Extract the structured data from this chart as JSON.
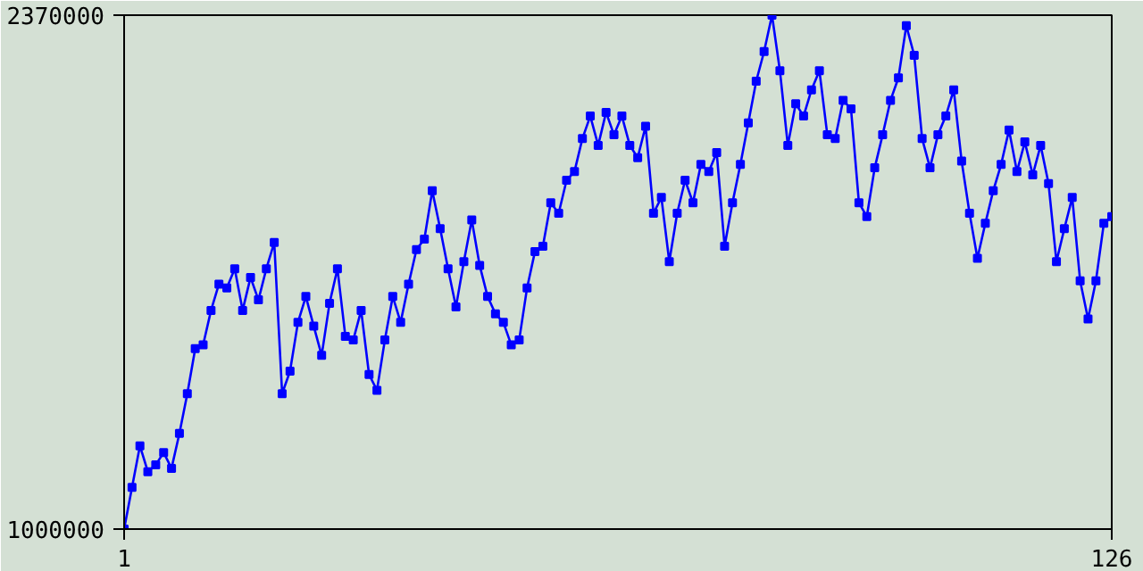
{
  "chart_data": {
    "type": "line",
    "x": [
      1,
      2,
      3,
      4,
      5,
      6,
      7,
      8,
      9,
      10,
      11,
      12,
      13,
      14,
      15,
      16,
      17,
      18,
      19,
      20,
      21,
      22,
      23,
      24,
      25,
      26,
      27,
      28,
      29,
      30,
      31,
      32,
      33,
      34,
      35,
      36,
      37,
      38,
      39,
      40,
      41,
      42,
      43,
      44,
      45,
      46,
      47,
      48,
      49,
      50,
      51,
      52,
      53,
      54,
      55,
      56,
      57,
      58,
      59,
      60,
      61,
      62,
      63,
      64,
      65,
      66,
      67,
      68,
      69,
      70,
      71,
      72,
      73,
      74,
      75,
      76,
      77,
      78,
      79,
      80,
      81,
      82,
      83,
      84,
      85,
      86,
      87,
      88,
      89,
      90,
      91,
      92,
      93,
      94,
      95,
      96,
      97,
      98,
      99,
      100,
      101,
      102,
      103,
      104,
      105,
      106,
      107,
      108,
      109,
      110,
      111,
      112,
      113,
      114,
      115,
      116,
      117,
      118,
      119,
      120,
      121,
      122,
      123,
      124,
      125,
      126
    ],
    "series": [
      {
        "color": "#0000ff",
        "values": [
          1000000,
          1111000,
          1222000,
          1153000,
          1171000,
          1204000,
          1162000,
          1255000,
          1361000,
          1481000,
          1491000,
          1583000,
          1653000,
          1643000,
          1694000,
          1583000,
          1671000,
          1611000,
          1694000,
          1764000,
          1361000,
          1421000,
          1551000,
          1620000,
          1541000,
          1463000,
          1602000,
          1694000,
          1514000,
          1504000,
          1583000,
          1412000,
          1370000,
          1504000,
          1620000,
          1551000,
          1653000,
          1745000,
          1773000,
          1902000,
          1801000,
          1694000,
          1592000,
          1713000,
          1824000,
          1703000,
          1620000,
          1574000,
          1551000,
          1491000,
          1504000,
          1643000,
          1740000,
          1754000,
          1870000,
          1842000,
          1930000,
          1953000,
          2041000,
          2101000,
          2023000,
          2111000,
          2051000,
          2101000,
          2023000,
          1990000,
          2074000,
          1842000,
          1884000,
          1713000,
          1842000,
          1930000,
          1870000,
          1972000,
          1953000,
          2004000,
          1754000,
          1870000,
          1972000,
          2083000,
          2194000,
          2273000,
          2370000,
          2222000,
          2023000,
          2134000,
          2101000,
          2171000,
          2222000,
          2051000,
          2041000,
          2143000,
          2120000,
          1870000,
          1833000,
          1963000,
          2051000,
          2143000,
          2203000,
          2342000,
          2263000,
          2041000,
          1963000,
          2051000,
          2101000,
          2171000,
          1981000,
          1842000,
          1722000,
          1815000,
          1902000,
          1972000,
          2064000,
          1953000,
          2032000,
          1944000,
          2023000,
          1921000,
          1713000,
          1801000,
          1884000,
          1662000,
          1560000,
          1662000,
          1815000,
          1833000
        ]
      }
    ],
    "xlim": [
      1,
      126
    ],
    "ylim": [
      1000000,
      2370000
    ],
    "xticks": [
      1,
      126
    ],
    "yticks": [
      1000000,
      2370000
    ],
    "marker": "square",
    "line_style": "solid"
  }
}
